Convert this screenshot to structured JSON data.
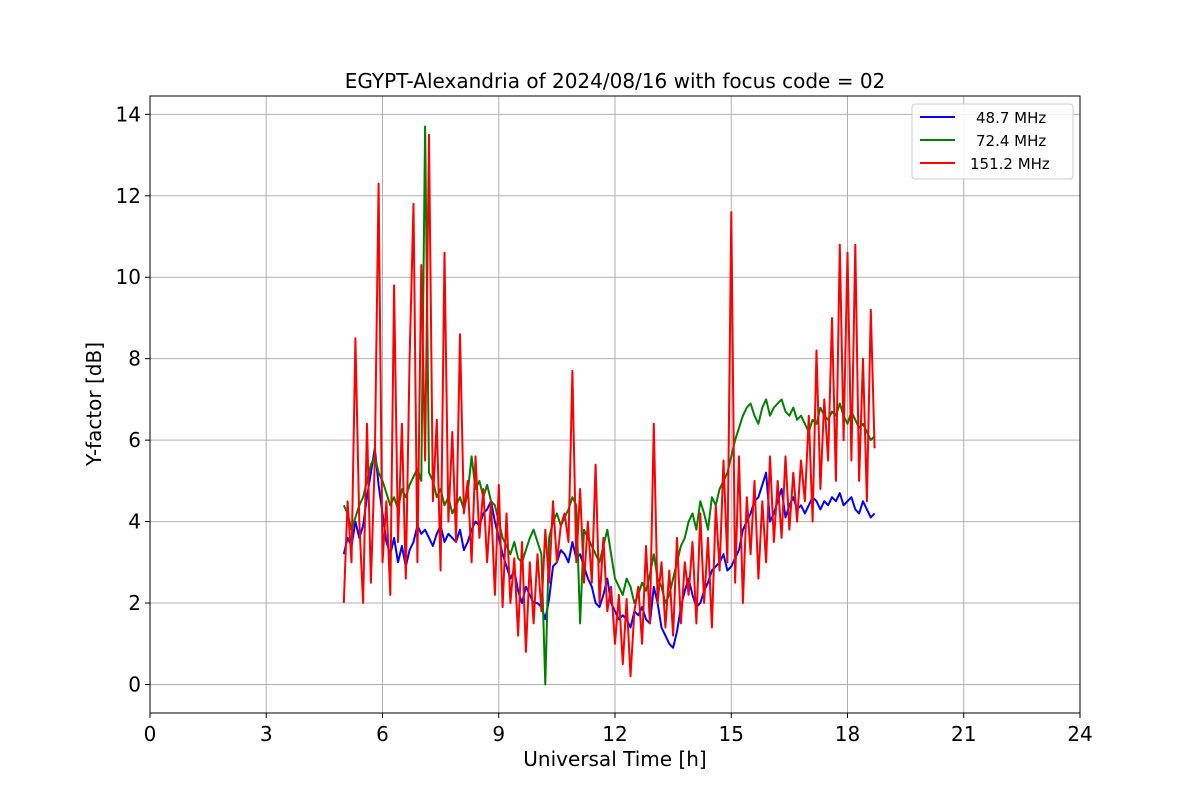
{
  "chart_data": {
    "type": "line",
    "title": "EGYPT-Alexandria of 2024/08/16 with focus code = 02",
    "xlabel": "Universal Time [h]",
    "ylabel": "Y-factor [dB]",
    "xlim": [
      0,
      24
    ],
    "ylim": [
      -0.7,
      14.45
    ],
    "xticks": [
      0,
      3,
      6,
      9,
      12,
      15,
      18,
      21,
      24
    ],
    "yticks": [
      0,
      2,
      4,
      6,
      8,
      10,
      12,
      14
    ],
    "grid": true,
    "legend_position": "top-right",
    "series": [
      {
        "name": "48.7 MHz",
        "color": "#0000ff",
        "x": [
          5.0,
          5.1,
          5.2,
          5.3,
          5.4,
          5.5,
          5.6,
          5.7,
          5.8,
          5.9,
          6.0,
          6.1,
          6.2,
          6.3,
          6.4,
          6.5,
          6.6,
          6.7,
          6.8,
          6.9,
          7.0,
          7.1,
          7.2,
          7.3,
          7.4,
          7.5,
          7.6,
          7.7,
          7.8,
          7.9,
          8.0,
          8.1,
          8.2,
          8.3,
          8.4,
          8.5,
          8.6,
          8.7,
          8.8,
          8.9,
          9.0,
          9.1,
          9.2,
          9.3,
          9.4,
          9.5,
          9.6,
          9.7,
          9.8,
          9.9,
          10.0,
          10.1,
          10.2,
          10.3,
          10.4,
          10.5,
          10.6,
          10.7,
          10.8,
          10.9,
          11.0,
          11.1,
          11.2,
          11.3,
          11.4,
          11.5,
          11.6,
          11.7,
          11.8,
          11.9,
          12.0,
          12.1,
          12.2,
          12.3,
          12.4,
          12.5,
          12.6,
          12.7,
          12.8,
          12.9,
          13.0,
          13.1,
          13.2,
          13.3,
          13.4,
          13.5,
          13.6,
          13.7,
          13.8,
          13.9,
          14.0,
          14.1,
          14.2,
          14.3,
          14.4,
          14.5,
          14.6,
          14.7,
          14.8,
          14.9,
          15.0,
          15.1,
          15.2,
          15.3,
          15.4,
          15.5,
          15.6,
          15.7,
          15.8,
          15.9,
          16.0,
          16.1,
          16.2,
          16.3,
          16.4,
          16.5,
          16.6,
          16.7,
          16.8,
          16.9,
          17.0,
          17.1,
          17.2,
          17.3,
          17.4,
          17.5,
          17.6,
          17.7,
          17.8,
          17.9,
          18.0,
          18.1,
          18.2,
          18.3,
          18.4,
          18.5,
          18.6,
          18.7
        ],
        "y": [
          3.2,
          3.6,
          3.4,
          4.0,
          3.6,
          3.9,
          4.6,
          5.2,
          5.8,
          4.9,
          4.2,
          3.5,
          3.2,
          3.6,
          3.0,
          3.4,
          2.9,
          3.3,
          3.5,
          3.9,
          3.7,
          3.8,
          3.6,
          3.4,
          3.7,
          3.9,
          3.5,
          3.7,
          3.6,
          3.5,
          3.8,
          3.3,
          3.5,
          3.8,
          4.0,
          3.9,
          4.2,
          4.3,
          4.5,
          4.0,
          3.6,
          3.2,
          2.9,
          2.6,
          2.8,
          2.3,
          2.0,
          2.4,
          2.2,
          2.0,
          2.0,
          1.9,
          1.6,
          2.1,
          2.9,
          3.0,
          3.3,
          3.2,
          3.0,
          3.5,
          3.1,
          3.2,
          2.9,
          2.6,
          2.4,
          2.0,
          1.9,
          2.2,
          2.6,
          2.0,
          1.8,
          1.6,
          1.7,
          1.6,
          1.4,
          1.8,
          1.7,
          1.9,
          1.6,
          1.5,
          2.4,
          2.0,
          1.4,
          1.2,
          1.0,
          0.9,
          1.3,
          1.9,
          2.3,
          2.6,
          2.2,
          1.9,
          2.0,
          2.3,
          2.5,
          2.8,
          2.9,
          3.0,
          3.2,
          2.8,
          2.9,
          3.1,
          3.3,
          3.8,
          4.0,
          4.2,
          4.5,
          4.6,
          4.9,
          5.2,
          4.0,
          4.2,
          4.5,
          4.8,
          4.1,
          4.4,
          4.6,
          4.3,
          4.4,
          4.2,
          4.4,
          4.6,
          4.5,
          4.3,
          4.5,
          4.4,
          4.6,
          4.5,
          4.7,
          4.4,
          4.5,
          4.6,
          4.3,
          4.2,
          4.5,
          4.3,
          4.1,
          4.2
        ]
      },
      {
        "name": "72.4 MHz",
        "color": "#008000",
        "x": [
          5.0,
          5.1,
          5.2,
          5.3,
          5.4,
          5.5,
          5.6,
          5.7,
          5.8,
          5.9,
          6.0,
          6.1,
          6.2,
          6.3,
          6.4,
          6.5,
          6.6,
          6.7,
          6.8,
          6.9,
          7.0,
          7.1,
          7.2,
          7.3,
          7.4,
          7.5,
          7.6,
          7.7,
          7.8,
          7.9,
          8.0,
          8.1,
          8.2,
          8.3,
          8.4,
          8.5,
          8.6,
          8.7,
          8.8,
          8.9,
          9.0,
          9.1,
          9.2,
          9.3,
          9.4,
          9.5,
          9.6,
          9.7,
          9.8,
          9.9,
          10.0,
          10.1,
          10.2,
          10.3,
          10.4,
          10.5,
          10.6,
          10.7,
          10.8,
          10.9,
          11.0,
          11.1,
          11.2,
          11.3,
          11.4,
          11.5,
          11.6,
          11.7,
          11.8,
          11.9,
          12.0,
          12.1,
          12.2,
          12.3,
          12.4,
          12.5,
          12.6,
          12.7,
          12.8,
          12.9,
          13.0,
          13.1,
          13.2,
          13.3,
          13.4,
          13.5,
          13.6,
          13.7,
          13.8,
          13.9,
          14.0,
          14.1,
          14.2,
          14.3,
          14.4,
          14.5,
          14.6,
          14.7,
          14.8,
          14.9,
          15.0,
          15.1,
          15.2,
          15.3,
          15.4,
          15.5,
          15.6,
          15.7,
          15.8,
          15.9,
          16.0,
          16.1,
          16.2,
          16.3,
          16.4,
          16.5,
          16.6,
          16.7,
          16.8,
          16.9,
          17.0,
          17.1,
          17.2,
          17.3,
          17.4,
          17.5,
          17.6,
          17.7,
          17.8,
          17.9,
          18.0,
          18.1,
          18.2,
          18.3,
          18.4,
          18.5,
          18.6,
          18.7
        ],
        "y": [
          4.4,
          4.2,
          3.8,
          4.1,
          4.4,
          4.6,
          5.0,
          5.4,
          5.6,
          5.2,
          5.0,
          4.7,
          4.4,
          4.6,
          4.3,
          4.8,
          4.6,
          4.9,
          5.1,
          5.3,
          5.0,
          13.7,
          5.2,
          5.0,
          4.6,
          4.8,
          4.4,
          4.6,
          4.2,
          4.4,
          4.6,
          4.3,
          4.7,
          5.6,
          4.8,
          5.0,
          4.6,
          4.9,
          4.5,
          4.4,
          4.0,
          3.6,
          3.4,
          3.2,
          3.5,
          3.1,
          3.0,
          3.3,
          3.6,
          3.8,
          3.5,
          3.2,
          0.0,
          3.6,
          4.0,
          4.2,
          3.9,
          4.1,
          4.3,
          4.6,
          4.4,
          1.5,
          3.8,
          3.6,
          3.4,
          3.2,
          3.0,
          3.4,
          3.8,
          3.2,
          2.6,
          2.4,
          2.2,
          2.6,
          2.4,
          2.0,
          2.2,
          2.5,
          2.3,
          2.7,
          3.2,
          2.6,
          2.4,
          2.0,
          2.2,
          2.6,
          3.0,
          3.4,
          3.6,
          4.0,
          4.2,
          3.8,
          4.5,
          4.2,
          3.8,
          4.6,
          4.4,
          4.8,
          5.0,
          5.2,
          5.6,
          6.0,
          6.3,
          6.6,
          6.8,
          6.9,
          6.6,
          6.4,
          6.8,
          7.0,
          6.6,
          6.8,
          6.9,
          7.0,
          6.7,
          6.6,
          6.8,
          6.5,
          6.6,
          6.4,
          6.2,
          6.5,
          6.4,
          6.8,
          6.6,
          6.5,
          6.7,
          6.6,
          6.9,
          6.6,
          6.4,
          6.7,
          6.5,
          6.3,
          6.4,
          6.2,
          6.0,
          6.1
        ]
      },
      {
        "name": "151.2 MHz",
        "color": "#ff0000",
        "x": [
          5.0,
          5.1,
          5.2,
          5.3,
          5.4,
          5.5,
          5.6,
          5.7,
          5.8,
          5.9,
          6.0,
          6.1,
          6.2,
          6.3,
          6.4,
          6.5,
          6.6,
          6.7,
          6.8,
          6.9,
          7.0,
          7.1,
          7.2,
          7.3,
          7.4,
          7.5,
          7.6,
          7.7,
          7.8,
          7.9,
          8.0,
          8.1,
          8.2,
          8.3,
          8.4,
          8.5,
          8.6,
          8.7,
          8.8,
          8.9,
          9.0,
          9.1,
          9.2,
          9.3,
          9.4,
          9.5,
          9.6,
          9.7,
          9.8,
          9.9,
          10.0,
          10.1,
          10.2,
          10.3,
          10.4,
          10.5,
          10.6,
          10.7,
          10.8,
          10.9,
          11.0,
          11.1,
          11.2,
          11.3,
          11.4,
          11.5,
          11.6,
          11.7,
          11.8,
          11.9,
          12.0,
          12.1,
          12.2,
          12.3,
          12.4,
          12.5,
          12.6,
          12.7,
          12.8,
          12.9,
          13.0,
          13.1,
          13.2,
          13.3,
          13.4,
          13.5,
          13.6,
          13.7,
          13.8,
          13.9,
          14.0,
          14.1,
          14.2,
          14.3,
          14.4,
          14.5,
          14.6,
          14.7,
          14.8,
          14.9,
          15.0,
          15.1,
          15.2,
          15.3,
          15.4,
          15.5,
          15.6,
          15.7,
          15.8,
          15.9,
          16.0,
          16.1,
          16.2,
          16.3,
          16.4,
          16.5,
          16.6,
          16.7,
          16.8,
          16.9,
          17.0,
          17.1,
          17.2,
          17.3,
          17.4,
          17.5,
          17.6,
          17.7,
          17.8,
          17.9,
          18.0,
          18.1,
          18.2,
          18.3,
          18.4,
          18.5,
          18.6,
          18.7
        ],
        "y": [
          2.0,
          4.5,
          3.0,
          8.5,
          4.0,
          2.0,
          6.4,
          2.5,
          5.5,
          12.3,
          3.0,
          4.5,
          2.2,
          9.8,
          3.5,
          6.4,
          2.6,
          8.0,
          11.8,
          3.0,
          10.3,
          5.5,
          13.5,
          4.5,
          6.5,
          2.8,
          10.6,
          4.0,
          6.2,
          3.5,
          8.6,
          4.2,
          5.0,
          3.0,
          5.6,
          3.6,
          4.8,
          3.0,
          4.5,
          2.2,
          4.9,
          1.9,
          4.2,
          2.0,
          3.1,
          1.2,
          3.5,
          0.8,
          3.0,
          1.5,
          3.2,
          1.8,
          3.8,
          2.5,
          4.5,
          3.0,
          3.9,
          4.2,
          3.5,
          7.7,
          3.0,
          4.8,
          2.5,
          4.0,
          2.5,
          5.4,
          2.0,
          3.6,
          1.8,
          2.4,
          1.0,
          2.2,
          0.5,
          2.1,
          0.2,
          1.8,
          2.4,
          1.0,
          3.4,
          1.5,
          6.4,
          2.0,
          3.0,
          1.4,
          2.8,
          1.2,
          3.6,
          1.5,
          3.0,
          2.2,
          3.5,
          1.5,
          4.2,
          2.0,
          3.6,
          1.4,
          4.4,
          2.8,
          5.5,
          3.0,
          11.6,
          2.5,
          5.6,
          2.0,
          4.6,
          3.2,
          5.0,
          2.6,
          4.5,
          3.0,
          5.6,
          3.5,
          5.0,
          3.6,
          5.6,
          3.8,
          5.2,
          4.0,
          5.5,
          4.5,
          6.6,
          4.0,
          8.2,
          4.8,
          7.0,
          5.5,
          9.0,
          5.0,
          10.8,
          6.0,
          10.6,
          5.5,
          10.8,
          5.0,
          8.0,
          4.5,
          9.2,
          5.8
        ]
      }
    ]
  }
}
